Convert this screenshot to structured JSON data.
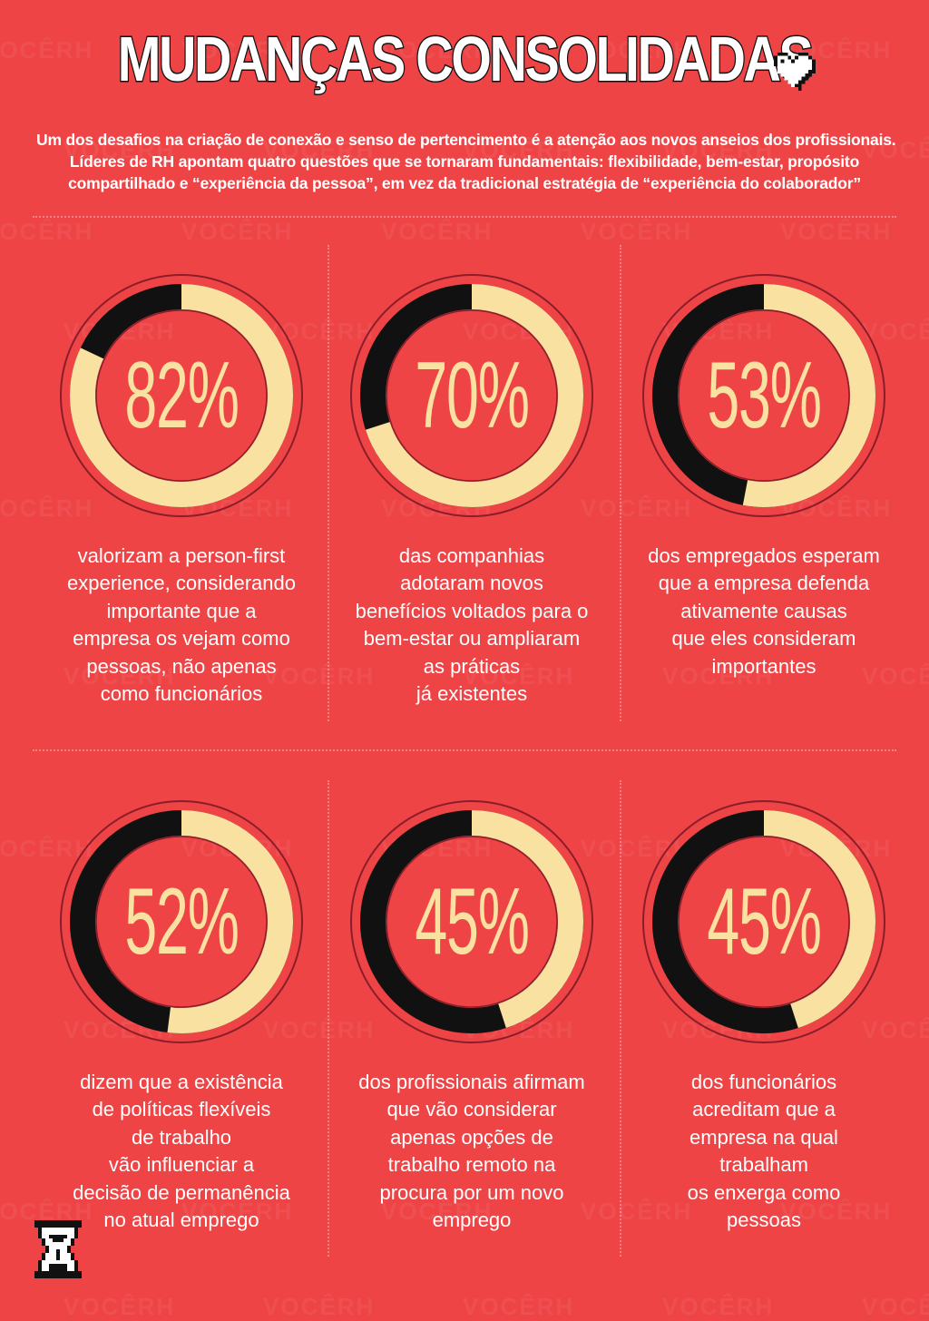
{
  "title": "MUDANÇAS CONSOLIDADAS",
  "intro": [
    "Um dos desafios na criação de conexão e senso de pertencimento é a atenção aos novos anseios dos profissionais.",
    "Líderes de RH apontam quatro questões que se tornaram fundamentais: flexibilidade, bem-estar, propósito",
    "compartilhado e “experiência da pessoa”, em vez da tradicional estratégia de “experiência do colaborador”"
  ],
  "watermark": "VOCÊRH",
  "colors": {
    "background": "#ee4446",
    "ring_fill": "#f9e2a1",
    "ring_empty": "#111111",
    "ring_outline": "#8a1d2a",
    "percent_text": "#f9e2a1",
    "text": "#ffffff"
  },
  "stats": [
    {
      "percent_label": "82%",
      "value": 0.82,
      "description": [
        "valorizam a person-first",
        "experience, considerando",
        "importante que a",
        "empresa os vejam como",
        "pessoas, não apenas",
        "como funcionários"
      ]
    },
    {
      "percent_label": "70%",
      "value": 0.7,
      "description": [
        "das companhias",
        "adotaram novos",
        "benefícios voltados para o",
        "bem-estar ou ampliaram",
        "as práticas",
        "já existentes"
      ]
    },
    {
      "percent_label": "53%",
      "value": 0.53,
      "description": [
        "dos empregados esperam",
        "que a empresa defenda",
        "ativamente causas",
        "que eles consideram",
        "importantes"
      ]
    },
    {
      "percent_label": "52%",
      "value": 0.52,
      "description": [
        "dizem que a existência",
        "de políticas flexíveis",
        "de trabalho",
        "vão influenciar a",
        "decisão de permanência",
        "no atual emprego"
      ]
    },
    {
      "percent_label": "45%",
      "value": 0.45,
      "description": [
        "dos profissionais afirmam",
        "que vão considerar",
        "apenas opções de",
        "trabalho remoto na",
        "procura por um novo",
        "emprego"
      ]
    },
    {
      "percent_label": "45%",
      "value": 0.45,
      "description": [
        "dos funcionários",
        "acreditam que a",
        "empresa na qual",
        "trabalham",
        "os enxerga como",
        "pessoas"
      ]
    }
  ],
  "icons": {
    "heart": "pixel-heart-icon",
    "hourglass": "pixel-hourglass-icon"
  }
}
